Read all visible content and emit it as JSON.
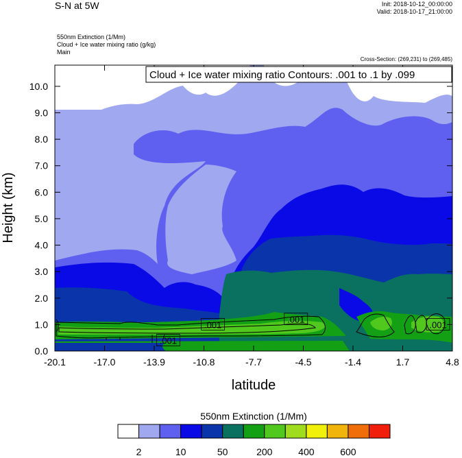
{
  "header": {
    "title": "S-N at 5W",
    "init": "Init: 2018-10-12_00:00:00",
    "valid": "Valid: 2018-10-17_21:00:00",
    "field1": "550nm Extinction   (1/Mm)",
    "field2": "Cloud + Ice water mixing ratio   (g/kg)",
    "field3": "Main",
    "cross_section": "Cross-Section: (269,231) to (269,485)"
  },
  "chart_data": {
    "type": "heatmap",
    "title": "Cloud + Ice water mixing ratio Contours: .001 to .1 by .099",
    "xlabel": "latitude",
    "ylabel": "Height (km)",
    "x_ticks": [
      "-20.1",
      "-17.0",
      "-13.9",
      "-10.8",
      "-7.7",
      "-4.5",
      "-1.4",
      "1.7",
      "4.8"
    ],
    "y_ticks": [
      "0.0",
      "1.0",
      "2.0",
      "3.0",
      "4.0",
      "5.0",
      "6.0",
      "7.0",
      "8.0",
      "9.0",
      "10.0"
    ],
    "xlim": [
      -20.1,
      4.8
    ],
    "ylim": [
      0,
      10.8
    ],
    "contour_labels": [
      {
        "text": ".001",
        "x": -13.0,
        "y": 0.4
      },
      {
        "text": ".001",
        "x": -10.2,
        "y": 1.0
      },
      {
        "text": ".001",
        "x": -5.0,
        "y": 1.2
      },
      {
        "text": ".001",
        "x": 3.9,
        "y": 1.0
      }
    ],
    "colorbar": {
      "title": "550nm Extinction  (1/Mm)",
      "colors": [
        "#ffffff",
        "#a0a8f0",
        "#6060f0",
        "#0a0ae6",
        "#0a35aa",
        "#0a7060",
        "#14a014",
        "#50c81e",
        "#a0dc1e",
        "#f0f00a",
        "#f0b40a",
        "#f06e0a",
        "#f01e0a"
      ],
      "tick_labels": [
        "2",
        "10",
        "50",
        "200",
        "400",
        "600"
      ]
    }
  }
}
